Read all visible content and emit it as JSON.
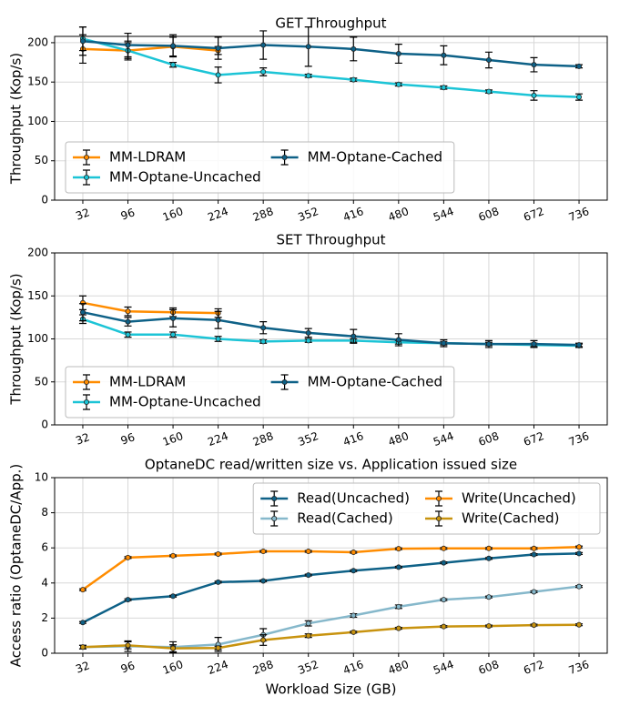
{
  "chart_data": [
    {
      "type": "line",
      "title": "GET Throughput",
      "ylabel": "Throughput (Kop/s)",
      "x": [
        32,
        96,
        160,
        224,
        288,
        352,
        416,
        480,
        544,
        608,
        672,
        736
      ],
      "xlim": [
        -8,
        776
      ],
      "xticks": [
        32,
        96,
        160,
        224,
        288,
        352,
        416,
        480,
        544,
        608,
        672,
        736
      ],
      "ylim": [
        0,
        208
      ],
      "yticks": [
        0,
        50,
        100,
        150,
        200
      ],
      "grid": true,
      "legend": "lower left",
      "legend_ncol": 2,
      "series": [
        {
          "name": "MM-LDRAM",
          "color": "#ff8c00",
          "values": [
            192,
            190,
            195,
            190,
            null,
            null,
            null,
            null,
            null,
            null,
            null,
            null
          ],
          "errors": [
            18,
            12,
            12,
            5,
            null,
            null,
            null,
            null,
            null,
            null,
            null,
            null
          ]
        },
        {
          "name": "MM-Optane-Uncached",
          "color": "#1cc4d6",
          "values": [
            205,
            190,
            172,
            159,
            163,
            158,
            153,
            147,
            143,
            138,
            133,
            131
          ],
          "errors": [
            15,
            10,
            3,
            10,
            5,
            2,
            2,
            2,
            2,
            2,
            6,
            4
          ]
        },
        {
          "name": "MM-Optane-Cached",
          "color": "#0e6187",
          "values": [
            202,
            197,
            196,
            193,
            197,
            195,
            192,
            186,
            184,
            178,
            172,
            170
          ],
          "errors": [
            18,
            15,
            14,
            14,
            18,
            25,
            15,
            12,
            12,
            10,
            9,
            2
          ]
        }
      ]
    },
    {
      "type": "line",
      "title": "SET Throughput",
      "ylabel": "Throughput (Kop/s)",
      "x": [
        32,
        96,
        160,
        224,
        288,
        352,
        416,
        480,
        544,
        608,
        672,
        736
      ],
      "xlim": [
        -8,
        776
      ],
      "xticks": [
        32,
        96,
        160,
        224,
        288,
        352,
        416,
        480,
        544,
        608,
        672,
        736
      ],
      "ylim": [
        0,
        200
      ],
      "yticks": [
        0,
        50,
        100,
        150,
        200
      ],
      "grid": true,
      "legend": "lower left",
      "legend_ncol": 2,
      "series": [
        {
          "name": "MM-LDRAM",
          "color": "#ff8c00",
          "values": [
            142,
            132,
            131,
            130,
            null,
            null,
            null,
            null,
            null,
            null,
            null,
            null
          ],
          "errors": [
            8,
            5,
            5,
            5,
            null,
            null,
            null,
            null,
            null,
            null,
            null,
            null
          ]
        },
        {
          "name": "MM-Optane-Uncached",
          "color": "#1cc4d6",
          "values": [
            123,
            105,
            105,
            100,
            97,
            98,
            98,
            96,
            95,
            94,
            93,
            92
          ],
          "errors": [
            5,
            3,
            3,
            3,
            2,
            2,
            2,
            2,
            2,
            2,
            2,
            2
          ]
        },
        {
          "name": "MM-Optane-Cached",
          "color": "#0e6187",
          "values": [
            131,
            120,
            124,
            122,
            113,
            107,
            103,
            99,
            95,
            94,
            94,
            93
          ],
          "errors": [
            10,
            5,
            10,
            10,
            7,
            5,
            8,
            7,
            4,
            4,
            4,
            2
          ]
        }
      ]
    },
    {
      "type": "line",
      "title": "OptaneDC read/written size vs. Application issued size",
      "ylabel": "Access ratio (OptaneDC/App.)",
      "xlabel": "Workload Size (GB)",
      "x": [
        32,
        96,
        160,
        224,
        288,
        352,
        416,
        480,
        544,
        608,
        672,
        736
      ],
      "xlim": [
        -8,
        776
      ],
      "xticks": [
        32,
        96,
        160,
        224,
        288,
        352,
        416,
        480,
        544,
        608,
        672,
        736
      ],
      "ylim": [
        0,
        10
      ],
      "yticks": [
        0,
        2,
        4,
        6,
        8,
        10
      ],
      "grid": true,
      "legend": "upper right",
      "legend_ncol": 2,
      "series": [
        {
          "name": "Read(Uncached)",
          "color": "#0e6187",
          "values": [
            1.75,
            3.05,
            3.25,
            4.05,
            4.12,
            4.45,
            4.7,
            4.9,
            5.15,
            5.4,
            5.62,
            5.68
          ],
          "errors": [
            0.05,
            0.05,
            0.05,
            0.05,
            0.05,
            0.05,
            0.05,
            0.05,
            0.05,
            0.05,
            0.05,
            0.05
          ]
        },
        {
          "name": "Read(Cached)",
          "color": "#86b8cb",
          "values": [
            0.35,
            0.4,
            0.35,
            0.5,
            1.05,
            1.7,
            2.15,
            2.65,
            3.05,
            3.2,
            3.5,
            3.8
          ],
          "errors": [
            0.1,
            0.3,
            0.3,
            0.4,
            0.35,
            0.15,
            0.1,
            0.1,
            0.05,
            0.05,
            0.05,
            0.05
          ]
        },
        {
          "name": "Write(Uncached)",
          "color": "#ff8c00",
          "values": [
            3.62,
            5.45,
            5.55,
            5.65,
            5.8,
            5.8,
            5.75,
            5.95,
            5.97,
            5.97,
            5.97,
            6.05
          ],
          "errors": [
            0.05,
            0.05,
            0.05,
            0.05,
            0.05,
            0.05,
            0.05,
            0.05,
            0.05,
            0.05,
            0.05,
            0.05
          ]
        },
        {
          "name": "Write(Cached)",
          "color": "#c8930f",
          "values": [
            0.35,
            0.45,
            0.28,
            0.3,
            0.75,
            1.0,
            1.2,
            1.42,
            1.52,
            1.55,
            1.6,
            1.62
          ],
          "errors": [
            0.1,
            0.2,
            0.2,
            0.1,
            0.3,
            0.1,
            0.05,
            0.05,
            0.05,
            0.05,
            0.05,
            0.05
          ]
        }
      ]
    }
  ]
}
